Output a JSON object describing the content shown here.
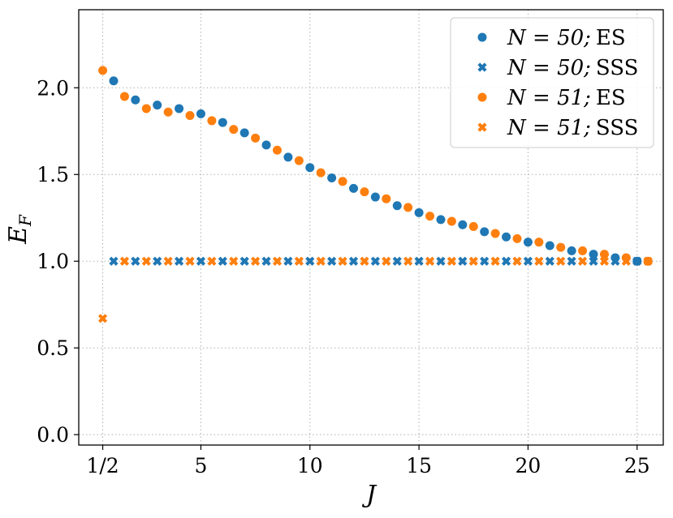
{
  "chart_data": {
    "type": "scatter",
    "xlabel": "J",
    "ylabel": "E_F",
    "xlim": [
      -0.6,
      26.2
    ],
    "ylim": [
      -0.06,
      2.45
    ],
    "grid": true,
    "legend_position": "top-right",
    "x_ticks": [
      0.5,
      5,
      10,
      15,
      20,
      25
    ],
    "x_tick_labels": [
      "1/2",
      "5",
      "10",
      "15",
      "20",
      "25"
    ],
    "y_ticks": [
      0.0,
      0.5,
      1.0,
      1.5,
      2.0
    ],
    "y_tick_labels": [
      "0.0",
      "0.5",
      "1.0",
      "1.5",
      "2.0"
    ],
    "series": [
      {
        "name": "N = 50; ES",
        "legend_main": "N = 50;",
        "legend_suffix": "ES",
        "marker": "circle",
        "color": "#1f77b4",
        "x": [
          1,
          2,
          3,
          4,
          5,
          6,
          7,
          8,
          9,
          10,
          11,
          12,
          13,
          14,
          15,
          16,
          17,
          18,
          19,
          20,
          21,
          22,
          23,
          24,
          25
        ],
        "y": [
          2.04,
          1.93,
          1.9,
          1.88,
          1.85,
          1.8,
          1.74,
          1.67,
          1.6,
          1.54,
          1.48,
          1.42,
          1.37,
          1.32,
          1.28,
          1.24,
          1.21,
          1.17,
          1.14,
          1.11,
          1.09,
          1.06,
          1.04,
          1.02,
          1.0
        ]
      },
      {
        "name": "N = 50; SSS",
        "legend_main": "N = 50;",
        "legend_suffix": "SSS",
        "marker": "x",
        "color": "#1f77b4",
        "x": [
          1,
          2,
          3,
          4,
          5,
          6,
          7,
          8,
          9,
          10,
          11,
          12,
          13,
          14,
          15,
          16,
          17,
          18,
          19,
          20,
          21,
          22,
          23,
          24,
          25
        ],
        "y": [
          1,
          1,
          1,
          1,
          1,
          1,
          1,
          1,
          1,
          1,
          1,
          1,
          1,
          1,
          1,
          1,
          1,
          1,
          1,
          1,
          1,
          1,
          1,
          1,
          1
        ]
      },
      {
        "name": "N = 51; ES",
        "legend_main": "N = 51;",
        "legend_suffix": "ES",
        "marker": "circle",
        "color": "#ff7f0e",
        "x": [
          0.5,
          1.5,
          2.5,
          3.5,
          4.5,
          5.5,
          6.5,
          7.5,
          8.5,
          9.5,
          10.5,
          11.5,
          12.5,
          13.5,
          14.5,
          15.5,
          16.5,
          17.5,
          18.5,
          19.5,
          20.5,
          21.5,
          22.5,
          23.5,
          24.5,
          25.5
        ],
        "y": [
          2.1,
          1.95,
          1.88,
          1.86,
          1.84,
          1.81,
          1.76,
          1.71,
          1.64,
          1.58,
          1.51,
          1.46,
          1.4,
          1.36,
          1.31,
          1.26,
          1.23,
          1.2,
          1.16,
          1.13,
          1.11,
          1.08,
          1.06,
          1.04,
          1.02,
          1.0
        ]
      },
      {
        "name": "N = 51; SSS",
        "legend_main": "N = 51;",
        "legend_suffix": "SSS",
        "marker": "x",
        "color": "#ff7f0e",
        "x": [
          0.5,
          1.5,
          2.5,
          3.5,
          4.5,
          5.5,
          6.5,
          7.5,
          8.5,
          9.5,
          10.5,
          11.5,
          12.5,
          13.5,
          14.5,
          15.5,
          16.5,
          17.5,
          18.5,
          19.5,
          20.5,
          21.5,
          22.5,
          23.5,
          24.5,
          25.5
        ],
        "y": [
          0.67,
          1,
          1,
          1,
          1,
          1,
          1,
          1,
          1,
          1,
          1,
          1,
          1,
          1,
          1,
          1,
          1,
          1,
          1,
          1,
          1,
          1,
          1,
          1,
          1,
          1
        ]
      }
    ]
  }
}
